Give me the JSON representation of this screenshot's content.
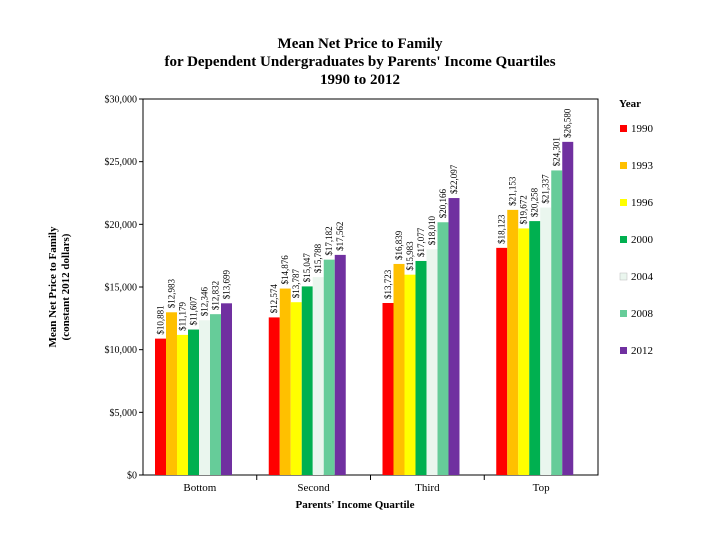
{
  "chart_data": {
    "type": "bar",
    "title_lines": [
      "Mean Net Price to Family",
      "for Dependent Undergraduates by Parents' Income Quartiles",
      "1990 to 2012"
    ],
    "xlabel": "Parents' Income Quartile",
    "ylabel_lines": [
      "Mean Net Price to Family",
      "(constant 2012 dollars)"
    ],
    "categories": [
      "Bottom",
      "Second",
      "Third",
      "Top"
    ],
    "yticks": [
      0,
      5000,
      10000,
      15000,
      20000,
      25000,
      30000
    ],
    "ytick_labels": [
      "$0",
      "$5,000",
      "$10,000",
      "$15,000",
      "$20,000",
      "$25,000",
      "$30,000"
    ],
    "ylim": [
      0,
      30000
    ],
    "grid": false,
    "legend_title": "Year",
    "legend_position": "right",
    "series": [
      {
        "name": "1990",
        "color": "#ff0000",
        "values": [
          10881,
          12574,
          13723,
          18123
        ],
        "labels": [
          "$10,881",
          "$12,574",
          "$13,723",
          "$18,123"
        ]
      },
      {
        "name": "1993",
        "color": "#ffc000",
        "values": [
          12983,
          14876,
          16839,
          21153
        ],
        "labels": [
          "$12,983",
          "$14,876",
          "$16,839",
          "$21,153"
        ]
      },
      {
        "name": "1996",
        "color": "#ffff00",
        "values": [
          11179,
          13787,
          15983,
          19672
        ],
        "labels": [
          "$11,179",
          "$13,787",
          "$15,983",
          "$19,672"
        ]
      },
      {
        "name": "2000",
        "color": "#00b050",
        "values": [
          11607,
          15047,
          17077,
          20258
        ],
        "labels": [
          "$11,607",
          "$15,047",
          "$17,077",
          "$20,258"
        ]
      },
      {
        "name": "2004",
        "color": "#eaf6ee",
        "values": [
          12346,
          15788,
          18010,
          21337
        ],
        "labels": [
          "$12,346",
          "$15,788",
          "$18,010",
          "$21,337"
        ]
      },
      {
        "name": "2008",
        "color": "#66cc99",
        "values": [
          12832,
          17182,
          20166,
          24301
        ],
        "labels": [
          "$12,832",
          "$17,182",
          "$20,166",
          "$24,301"
        ]
      },
      {
        "name": "2012",
        "color": "#7030a0",
        "values": [
          13699,
          17562,
          22097,
          26580
        ],
        "labels": [
          "$13,699",
          "$17,562",
          "$22,097",
          "$26,580"
        ]
      }
    ]
  }
}
